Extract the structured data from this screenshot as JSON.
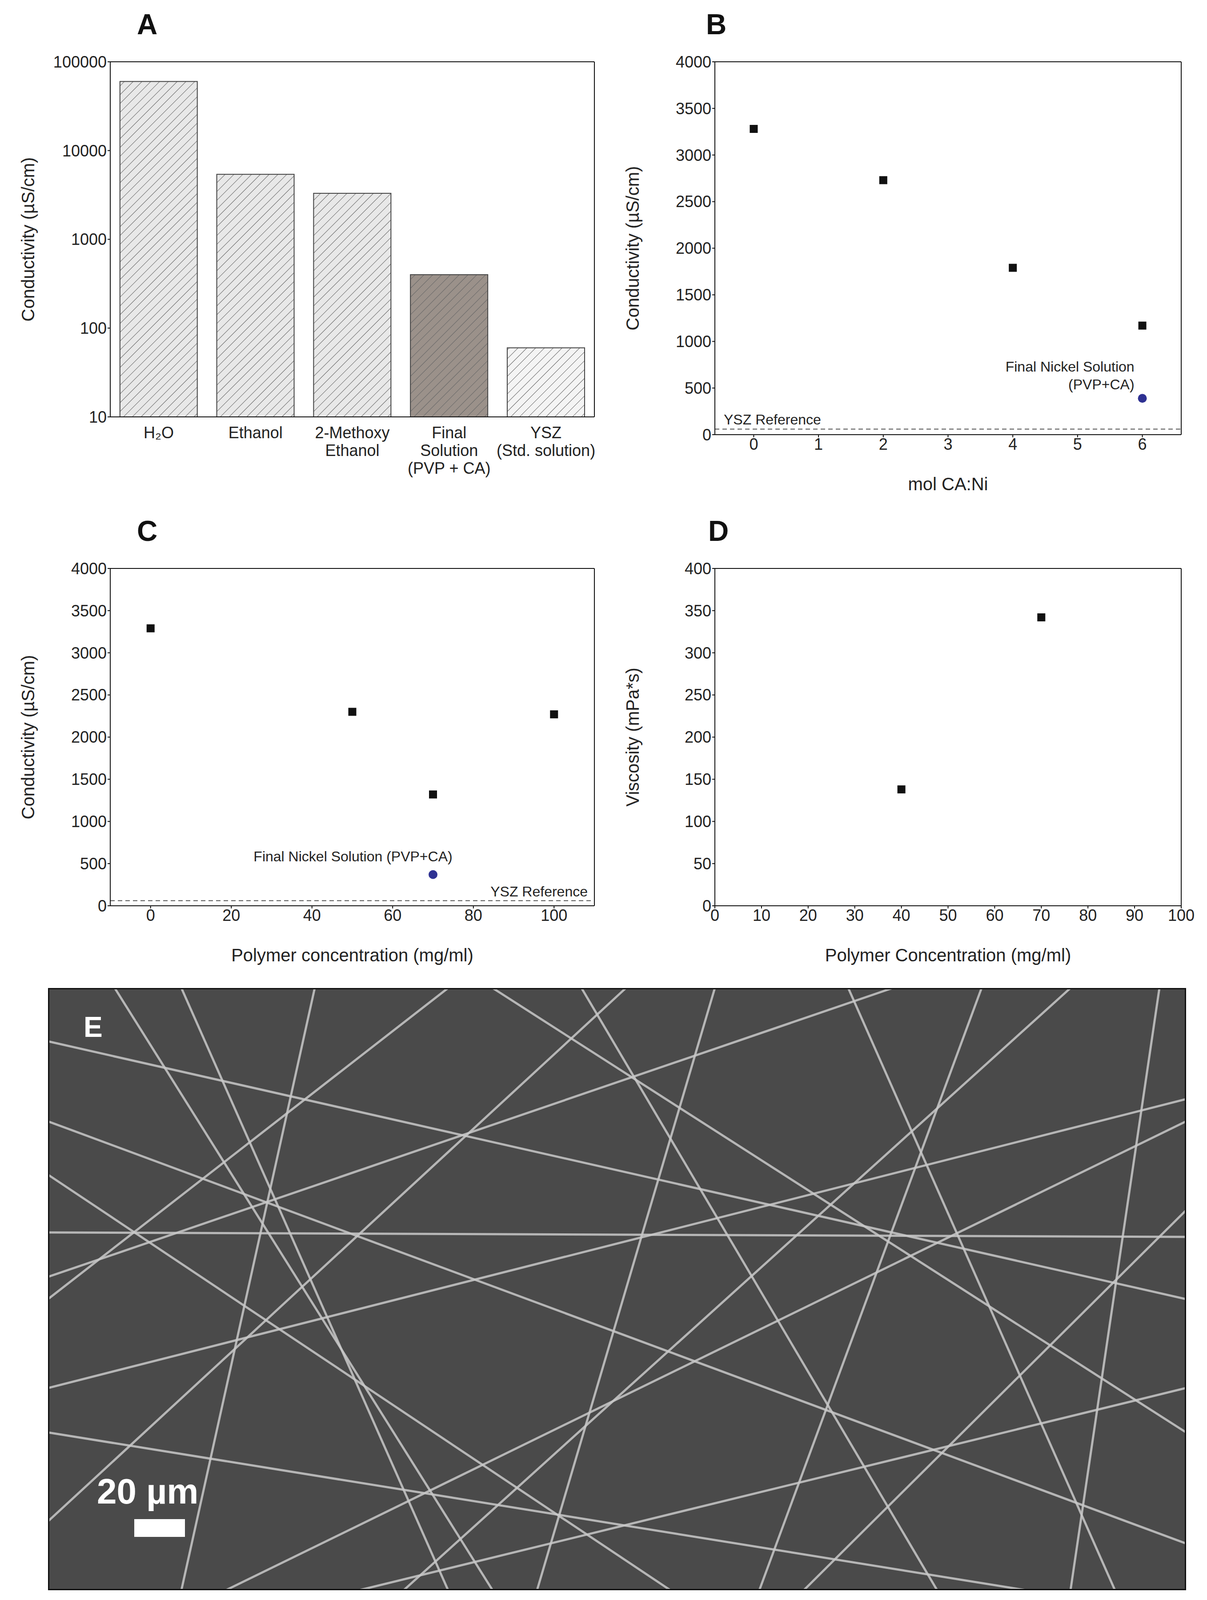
{
  "chart_data": [
    {
      "panel": "A",
      "type": "bar",
      "categories": [
        "H₂O",
        "Ethanol",
        "2-Methoxy\nEthanol",
        "Final\nSolution\n(PVP + CA)",
        "YSZ\n(Std. solution)"
      ],
      "values": [
        60000,
        5400,
        3300,
        400,
        60
      ],
      "colors": [
        "#e8e8e8",
        "#e8e8e8",
        "#e8e8e8",
        "#9b918a",
        "#f4f4f4"
      ],
      "log": "y",
      "ylim": [
        10,
        100000
      ],
      "yticks": [
        10,
        100,
        1000,
        10000,
        100000
      ],
      "y_label": "Conductivity (µS/cm)"
    },
    {
      "panel": "B",
      "type": "scatter",
      "x_label": "mol CA:Ni",
      "y_label": "Conductivity (µS/cm)",
      "xlim": [
        -0.6,
        6.6
      ],
      "xticks": [
        0,
        1,
        2,
        3,
        4,
        5,
        6
      ],
      "ylim": [
        0,
        4000
      ],
      "yticks": [
        0,
        500,
        1000,
        1500,
        2000,
        2500,
        3000,
        3500,
        4000
      ],
      "series": [
        {
          "x": [
            0,
            2,
            4,
            6
          ],
          "values": [
            3280,
            2730,
            1790,
            1170
          ],
          "color": "#111111",
          "marker": "square"
        },
        {
          "name": "Final Nickel Solution\n(PVP+CA)",
          "x": [
            6
          ],
          "values": [
            390
          ],
          "color": "#2e3192",
          "marker": "circle"
        }
      ],
      "reference_lines": [
        {
          "label": "YSZ Reference",
          "value": 60,
          "line_style": "dashed",
          "color": "#555555"
        }
      ]
    },
    {
      "panel": "C",
      "type": "scatter",
      "x_label": "Polymer concentration (mg/ml)",
      "y_label": "Conductivity (µS/cm)",
      "xlim": [
        -10,
        110
      ],
      "xticks": [
        0,
        20,
        40,
        60,
        80,
        100
      ],
      "ylim": [
        0,
        4000
      ],
      "yticks": [
        0,
        500,
        1000,
        1500,
        2000,
        2500,
        3000,
        3500,
        4000
      ],
      "series": [
        {
          "x": [
            0,
            50,
            70,
            100
          ],
          "values": [
            3290,
            2300,
            1320,
            2270
          ],
          "color": "#111111",
          "marker": "square"
        },
        {
          "name": "Final Nickel Solution (PVP+CA)",
          "x": [
            70
          ],
          "values": [
            370
          ],
          "color": "#2e3192",
          "marker": "circle"
        }
      ],
      "reference_lines": [
        {
          "label": "YSZ Reference",
          "value": 60,
          "line_style": "dashed",
          "color": "#555555"
        }
      ]
    },
    {
      "panel": "D",
      "type": "scatter",
      "x_label": "Polymer Concentration (mg/ml)",
      "y_label": "Viscosity (mPa*s)",
      "xlim": [
        0,
        100
      ],
      "xticks": [
        0,
        10,
        20,
        30,
        40,
        50,
        60,
        70,
        80,
        90,
        100
      ],
      "ylim": [
        0,
        400
      ],
      "yticks": [
        0,
        50,
        100,
        150,
        200,
        250,
        300,
        350,
        400
      ],
      "series": [
        {
          "x": [
            40,
            70
          ],
          "values": [
            138,
            342
          ],
          "color": "#111111",
          "marker": "square"
        }
      ]
    }
  ],
  "image": {
    "panel": "E",
    "scale_bar": "20 µm"
  }
}
